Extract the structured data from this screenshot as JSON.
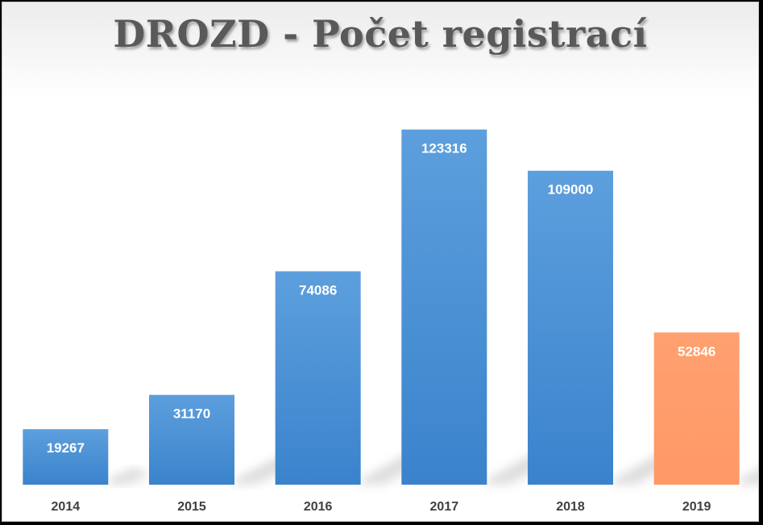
{
  "chart_data": {
    "type": "bar",
    "title": "DROZD - Počet registrací",
    "categories": [
      "2014",
      "2015",
      "2016",
      "2017",
      "2018",
      "2019"
    ],
    "values": [
      19267,
      31170,
      74086,
      123316,
      109000,
      52846
    ],
    "ylim": [
      0,
      140000
    ],
    "grid": false,
    "legend": "none",
    "colors": {
      "bar": "#3a83cc",
      "bar_top": "#5d9fdd",
      "highlight": "#ff9966",
      "highlight_top": "#ffa070",
      "data_label": "#ffffff",
      "tick_label": "#404040",
      "title": "#595959"
    },
    "highlight_index": 5
  }
}
